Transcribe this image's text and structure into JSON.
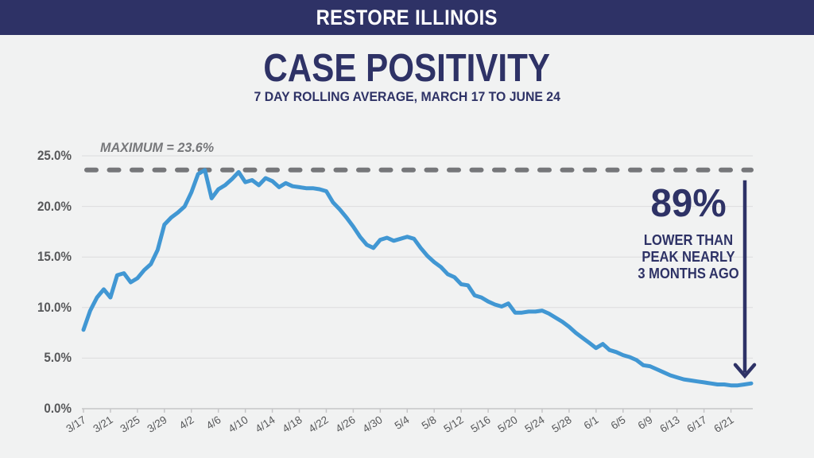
{
  "header": {
    "title": "RESTORE ILLINOIS"
  },
  "callout": {
    "big": "89%",
    "lines": [
      "LOWER THAN",
      "PEAK NEARLY",
      "3 MONTHS AGO"
    ]
  },
  "colors": {
    "navy": "#2e3266",
    "line_blue": "#4197d3",
    "dash_gray": "#76777a",
    "grid_gray": "#dcdcdd",
    "axis_gray": "#c6c6c8",
    "label_gray": "#57585a",
    "background": "#f1f2f2"
  },
  "chart_data": {
    "type": "line",
    "title": "CASE POSITIVITY",
    "subtitle": "7 DAY ROLLING AVERAGE, MARCH 17 TO JUNE 24",
    "xlabel": "",
    "ylabel": "",
    "ylim": [
      0,
      25
    ],
    "grid": true,
    "legend_position": "none",
    "y_ticks": [
      0,
      5,
      10,
      15,
      20,
      25
    ],
    "y_tick_labels": [
      "0.0%",
      "5.0%",
      "10.0%",
      "15.0%",
      "20.0%",
      "25.0%"
    ],
    "x_tick_labels": [
      "3/17",
      "3/21",
      "3/25",
      "3/29",
      "4/2",
      "4/6",
      "4/10",
      "4/14",
      "4/18",
      "4/22",
      "4/26",
      "4/30",
      "5/4",
      "5/8",
      "5/12",
      "5/16",
      "5/20",
      "5/24",
      "5/28",
      "6/1",
      "6/5",
      "6/9",
      "6/13",
      "6/17",
      "6/21"
    ],
    "x_tick_interval_days": 4,
    "max_line": {
      "value": 23.6,
      "label": "MAXIMUM = 23.6%"
    },
    "annotations": [
      {
        "type": "dashed-max-line",
        "text": "MAXIMUM = 23.6%"
      },
      {
        "type": "arrow-callout",
        "text": "89% LOWER THAN PEAK NEARLY 3 MONTHS AGO"
      }
    ],
    "series": [
      {
        "name": "7-day rolling average case positivity (%)",
        "x": [
          "3/17",
          "3/18",
          "3/19",
          "3/20",
          "3/21",
          "3/22",
          "3/23",
          "3/24",
          "3/25",
          "3/26",
          "3/27",
          "3/28",
          "3/29",
          "3/30",
          "3/31",
          "4/1",
          "4/2",
          "4/3",
          "4/4",
          "4/5",
          "4/6",
          "4/7",
          "4/8",
          "4/9",
          "4/10",
          "4/11",
          "4/12",
          "4/13",
          "4/14",
          "4/15",
          "4/16",
          "4/17",
          "4/18",
          "4/19",
          "4/20",
          "4/21",
          "4/22",
          "4/23",
          "4/24",
          "4/25",
          "4/26",
          "4/27",
          "4/28",
          "4/29",
          "4/30",
          "5/1",
          "5/2",
          "5/3",
          "5/4",
          "5/5",
          "5/6",
          "5/7",
          "5/8",
          "5/9",
          "5/10",
          "5/11",
          "5/12",
          "5/13",
          "5/14",
          "5/15",
          "5/16",
          "5/17",
          "5/18",
          "5/19",
          "5/20",
          "5/21",
          "5/22",
          "5/23",
          "5/24",
          "5/25",
          "5/26",
          "5/27",
          "5/28",
          "5/29",
          "5/30",
          "5/31",
          "6/1",
          "6/2",
          "6/3",
          "6/4",
          "6/5",
          "6/6",
          "6/7",
          "6/8",
          "6/9",
          "6/10",
          "6/11",
          "6/12",
          "6/13",
          "6/14",
          "6/15",
          "6/16",
          "6/17",
          "6/18",
          "6/19",
          "6/20",
          "6/21",
          "6/22",
          "6/23",
          "6/24"
        ],
        "values": [
          7.8,
          9.7,
          11.0,
          11.8,
          11.0,
          13.2,
          13.4,
          12.5,
          12.9,
          13.7,
          14.3,
          15.7,
          18.2,
          18.9,
          19.4,
          20.0,
          21.4,
          23.2,
          23.6,
          20.8,
          21.7,
          22.1,
          22.7,
          23.4,
          22.4,
          22.6,
          22.1,
          22.8,
          22.5,
          21.9,
          22.3,
          22.0,
          21.9,
          21.8,
          21.8,
          21.7,
          21.5,
          20.4,
          19.7,
          18.9,
          18.0,
          17.0,
          16.2,
          15.9,
          16.7,
          16.9,
          16.6,
          16.8,
          17.0,
          16.8,
          15.9,
          15.1,
          14.5,
          14.0,
          13.3,
          13.0,
          12.3,
          12.2,
          11.2,
          11.0,
          10.6,
          10.3,
          10.1,
          10.4,
          9.5,
          9.5,
          9.6,
          9.6,
          9.7,
          9.4,
          9.0,
          8.6,
          8.1,
          7.5,
          7.0,
          6.5,
          6.0,
          6.4,
          5.8,
          5.6,
          5.3,
          5.1,
          4.8,
          4.3,
          4.2,
          3.9,
          3.6,
          3.3,
          3.1,
          2.9,
          2.8,
          2.7,
          2.6,
          2.5,
          2.4,
          2.4,
          2.3,
          2.3,
          2.4,
          2.5
        ]
      }
    ]
  }
}
